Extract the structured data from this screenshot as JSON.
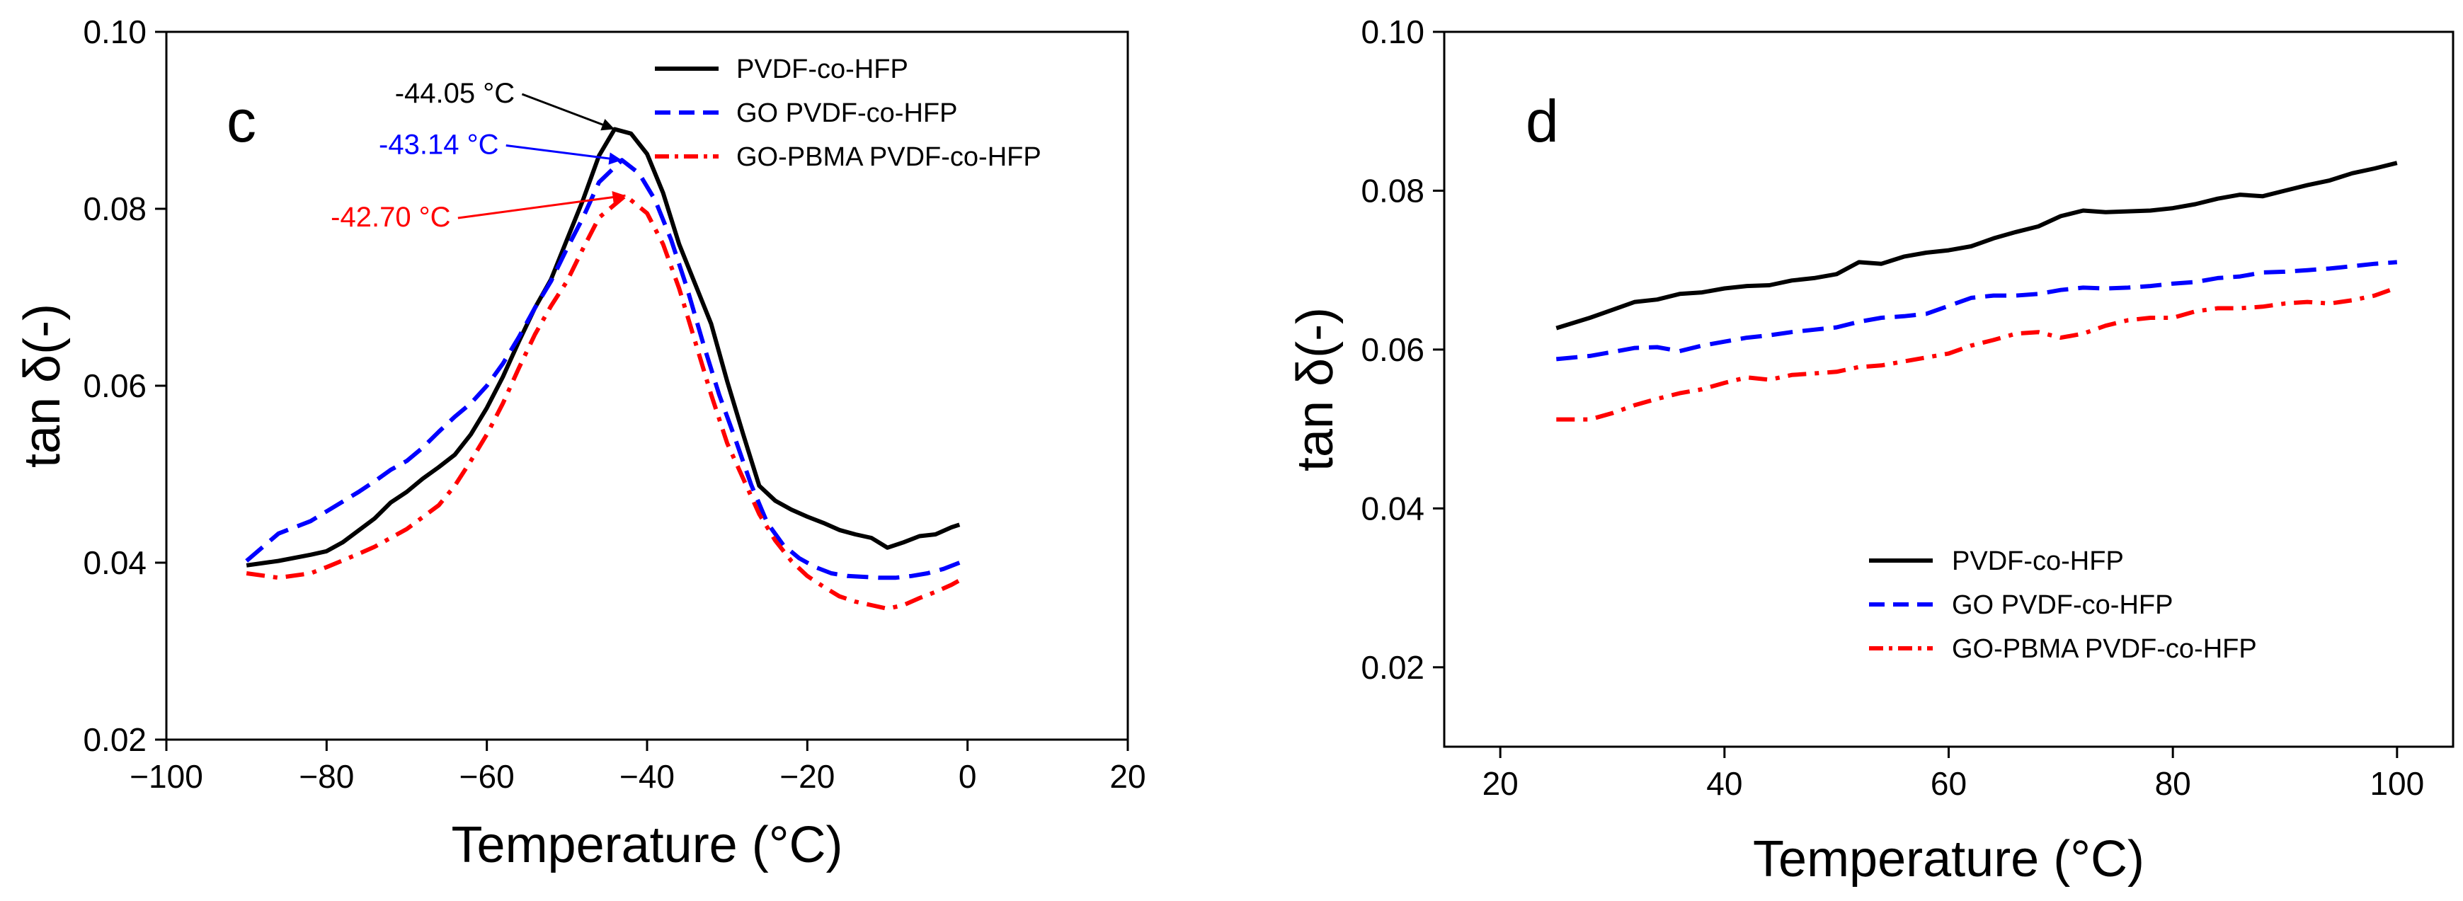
{
  "chart_data": [
    {
      "type": "line",
      "panel_label": "c",
      "xlabel": "Temperature (°C)",
      "ylabel": "tan δ(-)",
      "xlim": [
        -100,
        20
      ],
      "ylim": [
        0.02,
        0.1
      ],
      "xticks": [
        -100,
        -80,
        -60,
        -40,
        -20,
        0,
        20
      ],
      "xtick_labels": [
        "−100",
        "−80",
        "−60",
        "−40",
        "−20",
        "0",
        "20"
      ],
      "yticks": [
        0.02,
        0.04,
        0.06,
        0.08,
        0.1
      ],
      "ytick_labels": [
        "0.02",
        "0.04",
        "0.06",
        "0.08",
        "0.10"
      ],
      "legend_position": "top-right",
      "series": [
        {
          "name": "PVDF-co-HFP",
          "color": "#000000",
          "dash": "solid",
          "x": [
            -90,
            -86,
            -82,
            -80,
            -78,
            -74,
            -72,
            -70,
            -68,
            -66,
            -64,
            -62,
            -60,
            -58,
            -56,
            -54,
            -52,
            -50,
            -48,
            -46,
            -44.05,
            -42,
            -40,
            -38,
            -36,
            -34,
            -32,
            -30,
            -28,
            -26,
            -24,
            -22,
            -20,
            -18,
            -16,
            -14,
            -12,
            -10,
            -8,
            -6,
            -4,
            -2,
            -1
          ],
          "y": [
            0.0397,
            0.0402,
            0.0409,
            0.0413,
            0.0423,
            0.045,
            0.0468,
            0.048,
            0.0495,
            0.0508,
            0.0522,
            0.0545,
            0.0575,
            0.061,
            0.065,
            0.0688,
            0.072,
            0.0765,
            0.081,
            0.086,
            0.089,
            0.0885,
            0.0862,
            0.0818,
            0.076,
            0.0715,
            0.067,
            0.0605,
            0.0545,
            0.0487,
            0.047,
            0.046,
            0.0452,
            0.0445,
            0.0437,
            0.0432,
            0.0428,
            0.0417,
            0.0423,
            0.043,
            0.0432,
            0.044,
            0.0443
          ]
        },
        {
          "name": "GO PVDF-co-HFP",
          "color": "#0000ff",
          "dash": "dash",
          "x": [
            -90,
            -86,
            -82,
            -80,
            -76,
            -74,
            -72,
            -70,
            -68,
            -66,
            -64,
            -62,
            -60,
            -58,
            -56,
            -54,
            -52,
            -50,
            -48,
            -46,
            -43.14,
            -41,
            -39,
            -37,
            -35,
            -33,
            -31,
            -29,
            -27,
            -25,
            -23,
            -21,
            -19,
            -17,
            -15,
            -13,
            -11,
            -9,
            -7,
            -5,
            -3,
            -1
          ],
          "y": [
            0.0402,
            0.0433,
            0.0447,
            0.0458,
            0.048,
            0.0492,
            0.0505,
            0.0515,
            0.053,
            0.0548,
            0.0565,
            0.058,
            0.06,
            0.0625,
            0.0655,
            0.0688,
            0.0718,
            0.0755,
            0.079,
            0.083,
            0.0855,
            0.084,
            0.081,
            0.0765,
            0.071,
            0.0648,
            0.059,
            0.054,
            0.0488,
            0.0445,
            0.042,
            0.0405,
            0.0395,
            0.0388,
            0.0385,
            0.0384,
            0.0383,
            0.0383,
            0.0385,
            0.0388,
            0.0393,
            0.04
          ]
        },
        {
          "name": "GO-PBMA PVDF-co-HFP",
          "color": "#ff0000",
          "dash": "dashdot",
          "x": [
            -90,
            -86,
            -82,
            -80,
            -76,
            -74,
            -70,
            -66,
            -64,
            -62,
            -60,
            -58,
            -56,
            -54,
            -52,
            -50,
            -48,
            -46,
            -42.7,
            -40,
            -38,
            -36,
            -34,
            -32,
            -30,
            -28,
            -26,
            -24,
            -22,
            -20,
            -18,
            -16,
            -14,
            -12,
            -10,
            -8,
            -6,
            -4,
            -2,
            -1
          ],
          "y": [
            0.0388,
            0.0383,
            0.0388,
            0.0395,
            0.041,
            0.0418,
            0.0438,
            0.0465,
            0.0487,
            0.0515,
            0.0545,
            0.058,
            0.062,
            0.0658,
            0.069,
            0.0718,
            0.0755,
            0.079,
            0.0815,
            0.0795,
            0.076,
            0.071,
            0.065,
            0.059,
            0.0535,
            0.0495,
            0.0455,
            0.0425,
            0.0402,
            0.0385,
            0.0373,
            0.0362,
            0.0356,
            0.0352,
            0.0348,
            0.0352,
            0.036,
            0.0367,
            0.0375,
            0.038
          ]
        }
      ],
      "annotations": [
        {
          "text": "-44.05 °C",
          "color": "#000000",
          "target_x": -44.05,
          "target_y": 0.089,
          "label_x": -64,
          "label_y": 0.092
        },
        {
          "text": "-43.14 °C",
          "color": "#0000ff",
          "target_x": -43.14,
          "target_y": 0.0855,
          "label_x": -66,
          "label_y": 0.0862
        },
        {
          "text": "-42.70 °C",
          "color": "#ff0000",
          "target_x": -42.7,
          "target_y": 0.0815,
          "label_x": -72,
          "label_y": 0.078
        }
      ]
    },
    {
      "type": "line",
      "panel_label": "d",
      "xlabel": "Temperature (°C)",
      "ylabel": "tan δ(-)",
      "xlim": [
        15,
        105
      ],
      "ylim": [
        0.01,
        0.1
      ],
      "xticks": [
        20,
        40,
        60,
        80,
        100
      ],
      "xtick_labels": [
        "20",
        "40",
        "60",
        "80",
        "100"
      ],
      "yticks": [
        0.02,
        0.04,
        0.06,
        0.08,
        0.1
      ],
      "ytick_labels": [
        "0.02",
        "0.04",
        "0.06",
        "0.08",
        "0.10"
      ],
      "legend_position": "lower-center",
      "series": [
        {
          "name": "PVDF-co-HFP",
          "color": "#000000",
          "dash": "solid",
          "x": [
            25,
            28,
            30,
            32,
            34,
            36,
            38,
            40,
            42,
            44,
            46,
            48,
            50,
            52,
            54,
            56,
            58,
            60,
            62,
            64,
            66,
            68,
            70,
            72,
            74,
            76,
            78,
            80,
            82,
            84,
            86,
            88,
            90,
            92,
            94,
            96,
            98,
            100
          ],
          "y": [
            0.0627,
            0.064,
            0.065,
            0.066,
            0.0663,
            0.067,
            0.0672,
            0.0677,
            0.068,
            0.0681,
            0.0687,
            0.069,
            0.0695,
            0.071,
            0.0708,
            0.0717,
            0.0722,
            0.0725,
            0.073,
            0.074,
            0.0748,
            0.0755,
            0.0768,
            0.0775,
            0.0773,
            0.0774,
            0.0775,
            0.0778,
            0.0783,
            0.079,
            0.0795,
            0.0793,
            0.08,
            0.0807,
            0.0813,
            0.0822,
            0.0828,
            0.0835
          ]
        },
        {
          "name": "GO PVDF-co-HFP",
          "color": "#0000ff",
          "dash": "dash",
          "x": [
            25,
            28,
            30,
            32,
            34,
            36,
            38,
            40,
            42,
            44,
            46,
            48,
            50,
            52,
            54,
            56,
            58,
            60,
            62,
            64,
            66,
            68,
            70,
            72,
            74,
            76,
            78,
            80,
            82,
            84,
            86,
            88,
            90,
            92,
            94,
            96,
            98,
            100
          ],
          "y": [
            0.0588,
            0.0592,
            0.0597,
            0.0602,
            0.0603,
            0.0598,
            0.0605,
            0.061,
            0.0615,
            0.0618,
            0.0622,
            0.0625,
            0.0628,
            0.0635,
            0.064,
            0.0642,
            0.0645,
            0.0655,
            0.0665,
            0.0668,
            0.0668,
            0.067,
            0.0675,
            0.0678,
            0.0677,
            0.0678,
            0.068,
            0.0683,
            0.0685,
            0.069,
            0.0692,
            0.0697,
            0.0698,
            0.07,
            0.0702,
            0.0705,
            0.0708,
            0.071
          ]
        },
        {
          "name": "GO-PBMA PVDF-co-HFP",
          "color": "#ff0000",
          "dash": "dashdot",
          "x": [
            25,
            28,
            30,
            32,
            34,
            36,
            38,
            40,
            42,
            44,
            46,
            48,
            50,
            52,
            54,
            56,
            58,
            60,
            62,
            64,
            66,
            68,
            70,
            72,
            74,
            76,
            78,
            80,
            82,
            84,
            86,
            88,
            90,
            92,
            94,
            96,
            98,
            100
          ],
          "y": [
            0.0512,
            0.0512,
            0.052,
            0.053,
            0.0538,
            0.0545,
            0.055,
            0.0558,
            0.0565,
            0.0562,
            0.0568,
            0.057,
            0.0572,
            0.0578,
            0.058,
            0.0585,
            0.059,
            0.0595,
            0.0605,
            0.0612,
            0.062,
            0.0622,
            0.0615,
            0.062,
            0.063,
            0.0637,
            0.064,
            0.064,
            0.0648,
            0.0652,
            0.0652,
            0.0654,
            0.0658,
            0.066,
            0.0658,
            0.0662,
            0.0668,
            0.0678
          ]
        }
      ],
      "annotations": []
    }
  ]
}
